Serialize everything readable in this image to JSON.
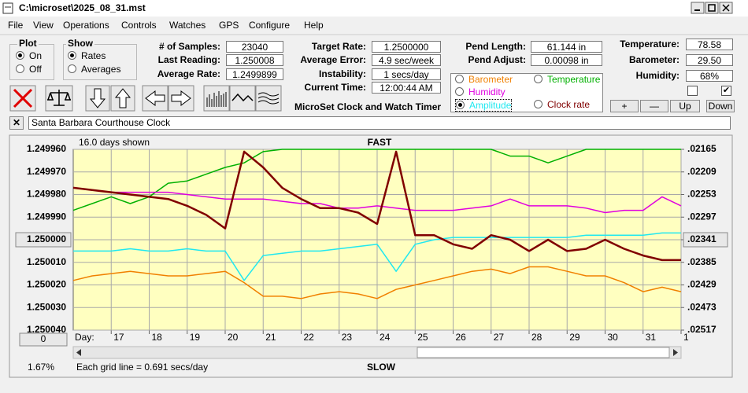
{
  "window": {
    "title": "C:\\microset\\2025_08_31.mst",
    "menu": [
      "File",
      "View",
      "Operations",
      "Controls",
      "Watches",
      "GPS",
      "Configure",
      "Help"
    ],
    "plot": {
      "label": "Plot",
      "options": [
        "On",
        "Off"
      ],
      "selected": 0
    },
    "show": {
      "label": "Show",
      "options": [
        "Rates",
        "Averages"
      ],
      "selected": 0
    },
    "fields": [
      {
        "label": "# of Samples:",
        "value": "23040"
      },
      {
        "label": "Last Reading:",
        "value": "1.250008"
      },
      {
        "label": "Average Rate:",
        "value": "1.2499899"
      },
      {
        "label": "Target Rate:",
        "value": "1.2500000"
      },
      {
        "label": "Average Error:",
        "value": "4.9 sec/week"
      },
      {
        "label": "Instability:",
        "value": "1 secs/day"
      },
      {
        "label": "Current Time:",
        "value": "12:00:44 AM"
      },
      {
        "label": "Pend Length:",
        "value": "61.144 in"
      },
      {
        "label": "Pend Adjust:",
        "value": "0.00098 in"
      },
      {
        "label": "Temperature:",
        "value": "78.58"
      },
      {
        "label": "Barometer:",
        "value": "29.50"
      },
      {
        "label": "Humidity:",
        "value": "68%"
      }
    ],
    "app_name": "MicroSet Clock and Watch Timer",
    "buttons": [
      "+",
      "—",
      "Up",
      "Down"
    ],
    "clock_name": "Santa Barbara Courthouse Clock",
    "offset_button": "0",
    "status_percent": "1.67%"
  },
  "chart_data": {
    "type": "line",
    "annotation": "16.0 days shown",
    "top_label": "FAST",
    "bottom_label": "SLOW",
    "note": "Each grid line = 0.691 secs/day",
    "x_label": "Day:",
    "x": [
      16,
      16.5,
      17,
      17.5,
      18,
      18.5,
      19,
      19.5,
      20,
      20.5,
      21,
      21.5,
      22,
      22.5,
      23,
      23.5,
      24,
      24.5,
      25,
      25.5,
      26,
      26.5,
      27,
      27.5,
      28,
      28.5,
      29,
      29.5,
      30,
      30.5,
      31,
      31.5,
      32
    ],
    "xlim": [
      16,
      32
    ],
    "xticks": [
      17,
      18,
      19,
      20,
      21,
      22,
      23,
      24,
      25,
      26,
      27,
      28,
      29,
      30,
      31,
      {
        "value": 32,
        "label": "1"
      }
    ],
    "ylim": [
      1.25004,
      1.24996
    ],
    "yticks": [
      {
        "value": 1.24996,
        "label": "1.249960"
      },
      {
        "value": 1.24997,
        "label": "1.249970"
      },
      {
        "value": 1.24998,
        "label": "1.249980"
      },
      {
        "value": 1.24999,
        "label": "1.249990"
      },
      {
        "value": 1.25,
        "label": "1.250000"
      },
      {
        "value": 1.25001,
        "label": "1.250010"
      },
      {
        "value": 1.25002,
        "label": "1.250020"
      },
      {
        "value": 1.25003,
        "label": "1.250030"
      },
      {
        "value": 1.25004,
        "label": "1.250040"
      }
    ],
    "y2lim": [
      0.02517,
      0.02165
    ],
    "y2ticks": [
      {
        "value": 0.02165,
        "label": ".02165"
      },
      {
        "value": 0.02209,
        "label": ".02209"
      },
      {
        "value": 0.02253,
        "label": ".02253"
      },
      {
        "value": 0.02297,
        "label": ".02297"
      },
      {
        "value": 0.02341,
        "label": ".02341"
      },
      {
        "value": 0.02385,
        "label": ".02385"
      },
      {
        "value": 0.02429,
        "label": ".02429"
      },
      {
        "value": 0.02473,
        "label": ".02473"
      },
      {
        "value": 0.02517,
        "label": ".02517"
      }
    ],
    "grid": true,
    "background": "#ffffc0",
    "series": [
      {
        "name": "Barometer",
        "color": "#f08000",
        "values": [
          1.250018,
          1.250016,
          1.250015,
          1.250014,
          1.250015,
          1.250016,
          1.250016,
          1.250015,
          1.250014,
          1.250019,
          1.250025,
          1.250025,
          1.250026,
          1.250024,
          1.250023,
          1.250024,
          1.250026,
          1.250022,
          1.25002,
          1.250018,
          1.250016,
          1.250014,
          1.250013,
          1.250015,
          1.250012,
          1.250012,
          1.250014,
          1.250016,
          1.250016,
          1.250019,
          1.250023,
          1.250021,
          1.250023
        ]
      },
      {
        "name": "Temperature",
        "color": "#00b000",
        "values": [
          1.249987,
          1.249984,
          1.249981,
          1.249984,
          1.249981,
          1.249975,
          1.249974,
          1.249971,
          1.249968,
          1.249966,
          1.249961,
          1.24996,
          1.24996,
          1.24996,
          1.24996,
          1.24996,
          1.24996,
          1.24996,
          1.24996,
          1.24996,
          1.24996,
          1.24996,
          1.24996,
          1.249963,
          1.249963,
          1.249966,
          1.249963,
          1.24996,
          1.24996,
          1.24996,
          1.24996,
          1.24996,
          1.24996
        ]
      },
      {
        "name": "Humidity",
        "color": "#e000e0",
        "values": [
          1.249977,
          1.249978,
          1.249979,
          1.249979,
          1.249979,
          1.249979,
          1.24998,
          1.249981,
          1.249982,
          1.249982,
          1.249982,
          1.249983,
          1.249984,
          1.249984,
          1.249986,
          1.249986,
          1.249985,
          1.249986,
          1.249987,
          1.249987,
          1.249987,
          1.249986,
          1.249985,
          1.249982,
          1.249985,
          1.249985,
          1.249985,
          1.249986,
          1.249988,
          1.249987,
          1.249987,
          1.249981,
          1.249985
        ]
      },
      {
        "name": "Amplitude",
        "color": "#20e8f0",
        "selected": true,
        "values": [
          1.250005,
          1.250005,
          1.250005,
          1.250004,
          1.250005,
          1.250005,
          1.250004,
          1.250005,
          1.250005,
          1.250018,
          1.250007,
          1.250006,
          1.250005,
          1.250005,
          1.250004,
          1.250003,
          1.250002,
          1.250014,
          1.250002,
          1.25,
          1.249999,
          1.249999,
          1.249999,
          1.249999,
          1.249999,
          1.249999,
          1.249999,
          1.249998,
          1.249998,
          1.249998,
          1.249998,
          1.249997,
          1.249997
        ]
      },
      {
        "name": "Clock rate",
        "color": "#800000",
        "values": [
          1.249977,
          1.249978,
          1.249979,
          1.24998,
          1.249981,
          1.249982,
          1.249985,
          1.249989,
          1.249995,
          1.249961,
          1.249968,
          1.249977,
          1.249982,
          1.249986,
          1.249986,
          1.249988,
          1.249993,
          1.249961,
          1.249998,
          1.249998,
          1.250002,
          1.250004,
          1.249998,
          1.25,
          1.250005,
          1.25,
          1.250005,
          1.250004,
          1.25,
          1.250004,
          1.250007,
          1.250009,
          1.250009
        ]
      }
    ]
  }
}
